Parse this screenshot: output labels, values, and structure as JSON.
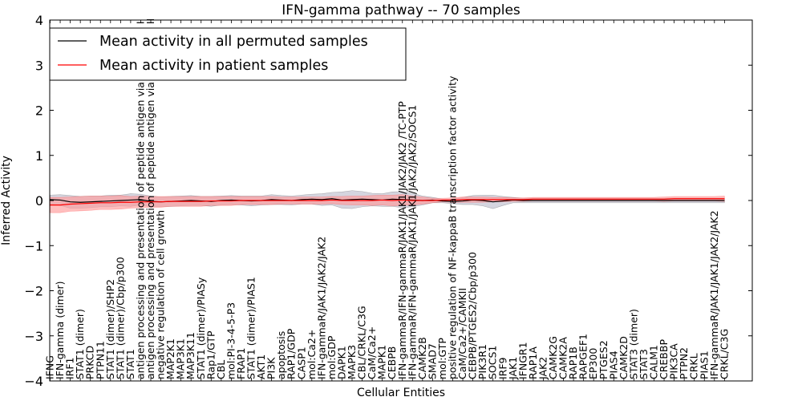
{
  "chart_data": {
    "type": "line",
    "title": "IFN-gamma pathway -- 70 samples",
    "xlabel": "Cellular Entities",
    "ylabel": "Inferred Activity",
    "ylim": [
      -4,
      4
    ],
    "yticks": [
      4,
      3,
      2,
      1,
      0,
      -1,
      -2,
      -3,
      -4
    ],
    "ytick_labels": [
      "4",
      "3",
      "2",
      "1",
      "0",
      "−1",
      "−2",
      "−3",
      "−4"
    ],
    "grid": false,
    "legend_position": "top-left",
    "categories": [
      "IFNG",
      "IFN-gamma (dimer)",
      "IRF1",
      "STAT1 (dimer)",
      "PRKCD",
      "PTPN11",
      "STAT1 (dimer)/SHP2",
      "STAT1 (dimer)/Cbp/p300",
      "STAT1",
      "antigen processing and presentation of peptide antigen via MHC class I",
      "antigen processing and presentation of peptide antigen via MHC class II",
      "negative regulation of cell growth",
      "MAP2K1",
      "MAP3K1",
      "MAP3K11",
      "STAT1 (dimer)/PIASy",
      "Rap1/GTP",
      "CBL",
      "mol:PI-3-4-5-P3",
      "FRAP1",
      "STAT1 (dimer)/PIAS1",
      "AKT1",
      "PI3K",
      "apoptosis",
      "RAP1/GDP",
      "CASP1",
      "mol:Ca2+",
      "IFN-gammaR/JAK1/JAK2/JAK2",
      "mol:GDP",
      "DAPK1",
      "MAPK3",
      "CBL/CRKL/C3G",
      "CaM/Ca2+",
      "MAPK1",
      "CEBPB",
      "IFN-gammaR/IFN-gammaR/JAK1/JAK1/JAK2/JAK2 /TC-PTP",
      "IFN-gammaR/IFN-gammaR/JAK1/JAK1/JAK2/JAK2/SOCS1",
      "CAMK2B",
      "SMAD7",
      "mol:GTP",
      "positive regulation of NF-kappaB transcription factor activity",
      "CaM/Ca2+/CAMKII",
      "CEBPB/PTGES2/Cbp/p300",
      "PIK3R1",
      "SOCS1",
      "IRF9",
      "JAK1",
      "IFNGR1",
      "RAP1A",
      "JAK2",
      "CAMK2G",
      "CAMK2A",
      "RAP1B",
      "RAPGEF1",
      "EP300",
      "PTGES2",
      "PIAS4",
      "CAMK2D",
      "STAT3 (dimer)",
      "STAT3",
      "CALM1",
      "CREBBP",
      "PIK3CA",
      "PTPN2",
      "CRKL",
      "PIAS1",
      "IFN-gammaR/JAK1/JAK1/JAK2/JAK2",
      "CRKL/C3G"
    ],
    "series": [
      {
        "name": "Mean activity in all permuted samples",
        "color": "#000000",
        "band_color": "#b9b9c9",
        "values": [
          0.02,
          0.01,
          -0.03,
          -0.04,
          -0.03,
          -0.02,
          -0.01,
          0.0,
          0.01,
          0.02,
          -0.02,
          -0.03,
          -0.02,
          -0.01,
          0.0,
          -0.01,
          -0.02,
          0.0,
          0.01,
          0.0,
          -0.01,
          0.0,
          0.02,
          0.01,
          0.0,
          0.02,
          0.03,
          0.02,
          0.04,
          0.01,
          0.02,
          0.03,
          0.02,
          0.01,
          0.03,
          0.02,
          0.01,
          0.0,
          0.01,
          -0.01,
          -0.02,
          -0.01,
          0.01,
          0.0,
          -0.03,
          -0.01,
          0.01,
          0.0,
          0.0,
          0.0,
          0.0,
          0.0,
          0.0,
          0.0,
          0.0,
          0.0,
          0.0,
          0.0,
          0.0,
          0.0,
          0.0,
          0.0,
          0.0,
          0.0,
          0.0,
          0.0,
          0.0,
          0.0
        ],
        "spread": [
          0.1,
          0.12,
          0.14,
          0.13,
          0.13,
          0.12,
          0.13,
          0.12,
          0.14,
          0.12,
          0.12,
          0.11,
          0.11,
          0.11,
          0.11,
          0.1,
          0.11,
          0.1,
          0.1,
          0.1,
          0.11,
          0.1,
          0.11,
          0.1,
          0.1,
          0.1,
          0.11,
          0.13,
          0.14,
          0.18,
          0.2,
          0.17,
          0.14,
          0.14,
          0.16,
          0.18,
          0.15,
          0.1,
          0.06,
          0.04,
          0.05,
          0.08,
          0.1,
          0.12,
          0.15,
          0.1,
          0.06,
          0.05,
          0.05,
          0.05,
          0.05,
          0.05,
          0.05,
          0.05,
          0.05,
          0.05,
          0.05,
          0.05,
          0.05,
          0.05,
          0.05,
          0.05,
          0.05,
          0.05,
          0.05,
          0.05,
          0.05,
          0.05
        ]
      },
      {
        "name": "Mean activity in patient samples",
        "color": "#ff0000",
        "band_color": "#ff9b9b",
        "values": [
          -0.1,
          -0.1,
          -0.08,
          -0.07,
          -0.06,
          -0.05,
          -0.05,
          -0.04,
          -0.04,
          -0.03,
          -0.03,
          -0.03,
          -0.02,
          -0.02,
          -0.02,
          -0.02,
          -0.01,
          -0.01,
          -0.01,
          0.0,
          0.0,
          0.0,
          0.0,
          0.0,
          0.0,
          0.0,
          0.0,
          0.0,
          0.01,
          0.0,
          0.0,
          0.0,
          0.0,
          0.01,
          0.0,
          0.01,
          0.0,
          0.0,
          0.0,
          0.01,
          0.01,
          0.02,
          0.02,
          0.02,
          0.02,
          0.02,
          0.02,
          0.02,
          0.03,
          0.03,
          0.03,
          0.03,
          0.03,
          0.03,
          0.03,
          0.03,
          0.03,
          0.03,
          0.03,
          0.03,
          0.03,
          0.03,
          0.04,
          0.04,
          0.04,
          0.04,
          0.04,
          0.04
        ],
        "spread": [
          0.17,
          0.17,
          0.16,
          0.16,
          0.16,
          0.15,
          0.15,
          0.15,
          0.13,
          0.13,
          0.12,
          0.12,
          0.11,
          0.11,
          0.11,
          0.11,
          0.1,
          0.1,
          0.1,
          0.09,
          0.09,
          0.09,
          0.09,
          0.08,
          0.08,
          0.08,
          0.08,
          0.08,
          0.08,
          0.09,
          0.1,
          0.1,
          0.11,
          0.11,
          0.12,
          0.12,
          0.1,
          0.08,
          0.05,
          0.04,
          0.05,
          0.06,
          0.06,
          0.06,
          0.05,
          0.05,
          0.04,
          0.04,
          0.04,
          0.04,
          0.04,
          0.04,
          0.04,
          0.04,
          0.04,
          0.04,
          0.04,
          0.04,
          0.04,
          0.04,
          0.04,
          0.05,
          0.05,
          0.05,
          0.05,
          0.05,
          0.05,
          0.06
        ]
      }
    ]
  }
}
